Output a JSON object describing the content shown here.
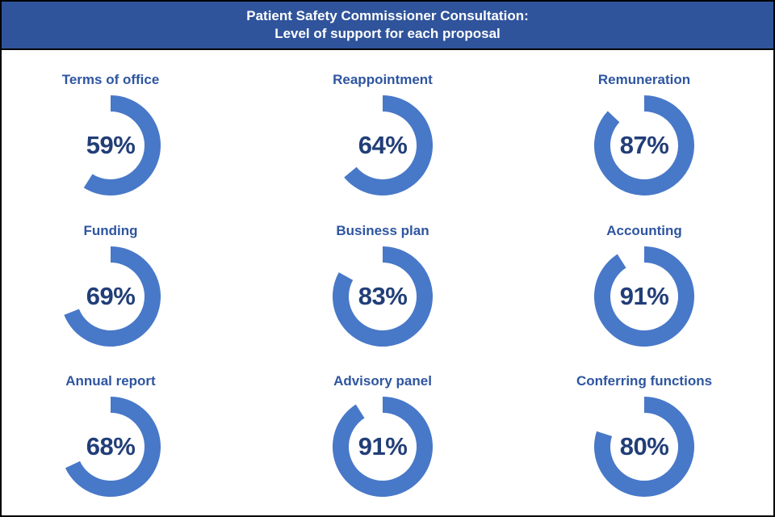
{
  "header": {
    "line1": "Patient Safety Commissioner Consultation:",
    "line2": "Level of support for each proposal"
  },
  "chart_data": {
    "type": "pie",
    "variant": "donut-grid",
    "title": "Patient Safety Commissioner Consultation: Level of support for each proposal",
    "unit": "%",
    "grid": {
      "rows": 3,
      "cols": 3
    },
    "arc": {
      "start": "top",
      "direction": "clockwise",
      "outer_radius": 62,
      "inner_radius": 42
    },
    "charts": [
      {
        "label": "Terms of office",
        "value": 59,
        "value_label": "59%"
      },
      {
        "label": "Reappointment",
        "value": 64,
        "value_label": "64%"
      },
      {
        "label": "Remuneration",
        "value": 87,
        "value_label": "87%"
      },
      {
        "label": "Funding",
        "value": 69,
        "value_label": "69%"
      },
      {
        "label": "Business plan",
        "value": 83,
        "value_label": "83%"
      },
      {
        "label": "Accounting",
        "value": 91,
        "value_label": "91%"
      },
      {
        "label": "Annual report",
        "value": 68,
        "value_label": "68%"
      },
      {
        "label": "Advisory panel",
        "value": 91,
        "value_label": "91%"
      },
      {
        "label": "Conferring functions",
        "value": 80,
        "value_label": "80%"
      }
    ]
  },
  "colors": {
    "page_bg": "#FFFFFF",
    "border": "#000000",
    "header_bg": "#30549B",
    "header_text": "#FFFFFF",
    "ring": "#4878C8",
    "chart_title": "#2E55A0",
    "value_text": "#223E78"
  }
}
